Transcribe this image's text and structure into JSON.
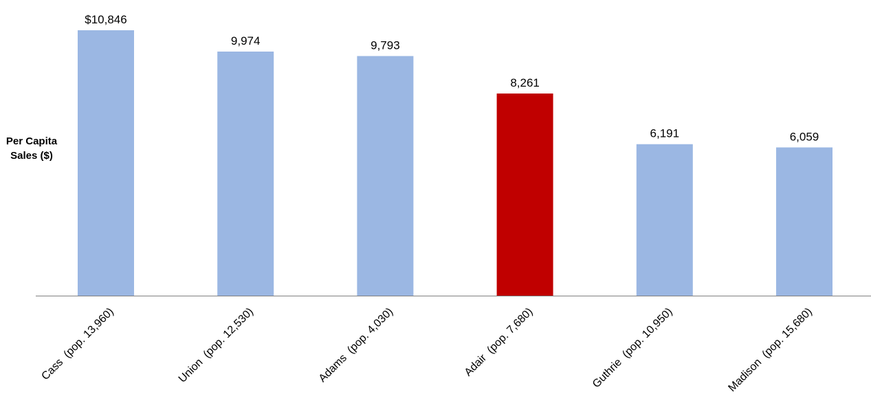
{
  "colors": {
    "default_bar": "#9bb7e3",
    "highlight_bar": "#c00000",
    "axis_line": "#808080",
    "text": "#000000"
  },
  "chart_data": {
    "type": "bar",
    "title": "",
    "xlabel": "",
    "ylabel": "Per Capita\nSales ($)",
    "categories": [
      "Cass  (pop. 13,960)",
      "Union  (pop. 12,530)",
      "Adams  (pop. 4,030)",
      "Adair  (pop. 7,680)",
      "Guthrie  (pop. 10,950)",
      "Madison  (pop. 15,680)"
    ],
    "values": [
      10846,
      9974,
      9793,
      8261,
      6191,
      6059
    ],
    "data_labels": [
      "$10,846",
      "9,974",
      "9,793",
      "8,261",
      "6,191",
      "6,059"
    ],
    "highlight_category": "Adair  (pop. 7,680)",
    "ylim": [
      0,
      11500
    ],
    "grid": false,
    "legend": "none",
    "y_ticks_shown": false
  }
}
